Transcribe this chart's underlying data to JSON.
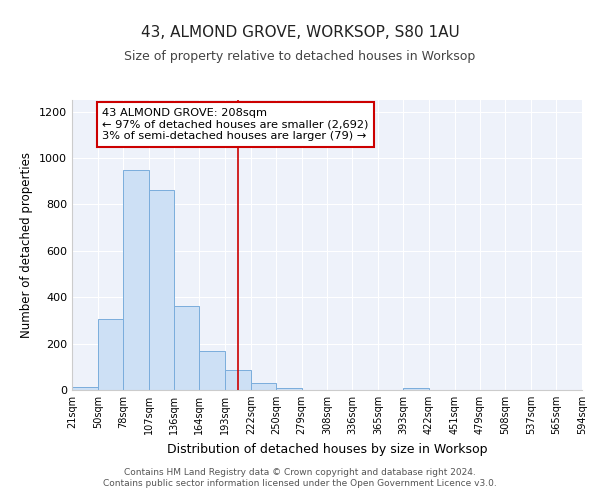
{
  "title": "43, ALMOND GROVE, WORKSOP, S80 1AU",
  "subtitle": "Size of property relative to detached houses in Worksop",
  "xlabel": "Distribution of detached houses by size in Worksop",
  "ylabel": "Number of detached properties",
  "bin_edges": [
    21,
    50,
    78,
    107,
    136,
    164,
    193,
    222,
    250,
    279,
    308,
    336,
    365,
    393,
    422,
    451,
    479,
    508,
    537,
    565,
    594
  ],
  "bar_heights": [
    15,
    305,
    950,
    860,
    360,
    170,
    85,
    30,
    10,
    0,
    0,
    0,
    0,
    10,
    0,
    0,
    0,
    0,
    0,
    0
  ],
  "bar_color": "#cde0f5",
  "bar_edge_color": "#7aaddc",
  "property_line_x": 208,
  "annotation_text": "43 ALMOND GROVE: 208sqm\n← 97% of detached houses are smaller (2,692)\n3% of semi-detached houses are larger (79) →",
  "annotation_box_color": "#ffffff",
  "annotation_box_edge_color": "#cc0000",
  "vline_color": "#cc0000",
  "ylim": [
    0,
    1250
  ],
  "yticks": [
    0,
    200,
    400,
    600,
    800,
    1000,
    1200
  ],
  "background_color": "#eef2fa",
  "grid_color": "#ffffff",
  "footer_line1": "Contains HM Land Registry data © Crown copyright and database right 2024.",
  "footer_line2": "Contains public sector information licensed under the Open Government Licence v3.0."
}
